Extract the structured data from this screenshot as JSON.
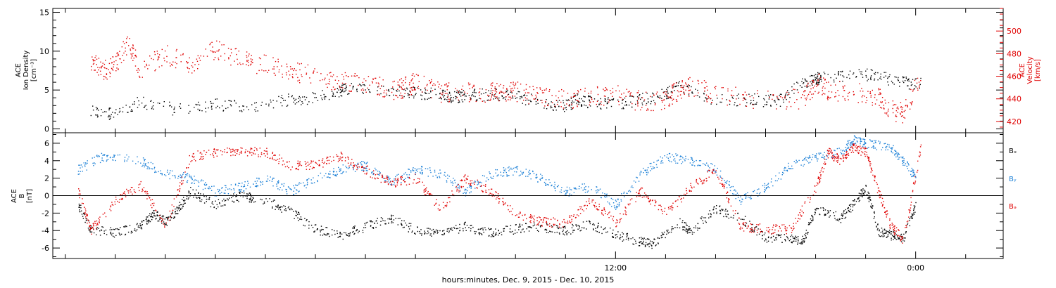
{
  "colors": {
    "black": "#000000",
    "red": "#e00000",
    "blue": "#1a7fd6"
  },
  "chart_data": [
    {
      "type": "scatter",
      "title": "",
      "ylabel_left": [
        "ACE",
        "Ion Density",
        "[cm⁻³]"
      ],
      "ylabel_right": [
        "ACE",
        "Velocity",
        "[km/s]"
      ],
      "ylim_left": [
        -0.5,
        15.5
      ],
      "ylim_right": [
        410,
        520
      ],
      "yticks_left": [
        0,
        5,
        10,
        15
      ],
      "yticks_right": [
        420,
        440,
        460,
        480,
        500
      ],
      "series": [
        {
          "color": "#000000",
          "axis": "left",
          "x": [
            -9.0,
            -8.2,
            -7.0,
            -5.5,
            -4.0,
            -2.5,
            -1.0,
            0.0,
            1.0,
            1.5,
            3.0,
            4.0,
            5.0,
            5.5,
            6.0,
            7.0,
            8.0,
            9.0,
            10.0,
            10.5,
            11.0,
            12.0,
            13.0,
            14.0,
            14.5,
            16.0,
            17.5,
            18.5,
            19.5,
            20.0,
            20.2,
            21.5,
            22.5,
            23.5,
            24.2
          ],
          "y": [
            2.5,
            2.0,
            3.5,
            2.5,
            3.2,
            3.0,
            3.8,
            4.0,
            5.0,
            5.2,
            4.8,
            4.7,
            4.5,
            4.2,
            4.3,
            4.5,
            4.2,
            3.5,
            3.0,
            3.8,
            3.5,
            3.2,
            3.8,
            4.5,
            5.5,
            3.8,
            3.8,
            3.6,
            6.0,
            6.5,
            6.5,
            7.2,
            6.8,
            6.0,
            5.8
          ]
        },
        {
          "color": "#e00000",
          "axis": "right",
          "x": [
            -9.0,
            -8.5,
            -8.0,
            -7.5,
            -7.0,
            -6.0,
            -5.0,
            -4.0,
            -3.0,
            -2.0,
            -1.0,
            0.0,
            1.0,
            2.0,
            3.0,
            3.5,
            4.0,
            5.0,
            6.0,
            7.0,
            7.5,
            8.0,
            9.0,
            10.0,
            11.0,
            12.0,
            13.0,
            14.0,
            14.5,
            15.0,
            16.0,
            17.5,
            19.5,
            20.0,
            20.5,
            21.5,
            22.5,
            23.0,
            23.5,
            24.2
          ],
          "y": [
            475,
            465,
            470,
            490,
            465,
            480,
            470,
            485,
            475,
            470,
            465,
            460,
            455,
            455,
            448,
            450,
            455,
            446,
            447,
            446,
            445,
            447,
            442,
            440,
            442,
            444,
            438,
            440,
            448,
            452,
            444,
            440,
            440,
            455,
            448,
            446,
            442,
            430,
            428,
            460
          ]
        }
      ]
    },
    {
      "type": "scatter",
      "title": "",
      "ylabel": [
        "ACE",
        "B",
        "[nT]"
      ],
      "ylim": [
        -7.2,
        7.2
      ],
      "yticks": [
        -6,
        -4,
        -2,
        0,
        2,
        4,
        6
      ],
      "zero_line": true,
      "legend": [
        "Bₓ",
        "Bᵧ",
        "Bₔ"
      ],
      "legend_position": "right",
      "series": [
        {
          "name": "Bx",
          "color": "#000000",
          "x": [
            -9.5,
            -9.0,
            -8.0,
            -7.0,
            -6.5,
            -6.0,
            -5.5,
            -5.0,
            -4.0,
            -3.0,
            -2.0,
            -1.0,
            0.0,
            1.0,
            2.0,
            3.0,
            4.0,
            5.0,
            6.0,
            7.0,
            8.0,
            9.0,
            10.0,
            11.0,
            12.0,
            13.0,
            13.5,
            14.5,
            15.0,
            16.0,
            17.0,
            18.0,
            19.0,
            19.5,
            20.0,
            21.0,
            21.5,
            22.0,
            22.5,
            23.0,
            23.5,
            24.0
          ],
          "y": [
            -1.0,
            -3.8,
            -4.2,
            -3.5,
            -2.0,
            -3.0,
            -1.5,
            0.5,
            -1.0,
            0.0,
            -0.5,
            -1.8,
            -3.8,
            -4.5,
            -3.5,
            -2.5,
            -4.0,
            -4.2,
            -3.5,
            -4.3,
            -3.8,
            -3.5,
            -4.0,
            -3.2,
            -4.5,
            -5.2,
            -5.5,
            -3.0,
            -4.0,
            -1.5,
            -2.5,
            -4.8,
            -5.0,
            -5.0,
            -1.5,
            -2.5,
            -1.0,
            1.0,
            -4.0,
            -4.5,
            -4.8,
            -1.0
          ]
        },
        {
          "name": "By",
          "color": "#1a7fd6",
          "x": [
            -9.5,
            -8.5,
            -7.0,
            -6.0,
            -5.0,
            -4.0,
            -3.0,
            -2.0,
            -1.0,
            0.0,
            1.0,
            2.0,
            3.0,
            4.0,
            5.0,
            6.0,
            7.0,
            8.0,
            9.0,
            10.0,
            11.0,
            12.0,
            13.0,
            14.0,
            15.0,
            16.0,
            17.0,
            18.0,
            19.0,
            20.0,
            21.0,
            21.5,
            22.0,
            23.0,
            23.5,
            24.0
          ],
          "y": [
            3.0,
            4.5,
            4.0,
            2.5,
            2.0,
            0.5,
            1.0,
            2.0,
            0.5,
            2.0,
            3.0,
            3.5,
            1.5,
            3.0,
            2.5,
            0.5,
            2.5,
            3.0,
            2.0,
            0.5,
            1.0,
            -1.0,
            2.5,
            4.5,
            4.0,
            3.0,
            -0.5,
            1.0,
            3.5,
            4.5,
            5.0,
            6.5,
            6.0,
            5.5,
            4.0,
            2.0
          ]
        },
        {
          "name": "Bz",
          "color": "#e00000",
          "x": [
            -9.5,
            -9.0,
            -8.0,
            -7.0,
            -6.0,
            -5.0,
            -4.0,
            -3.0,
            -2.0,
            -1.0,
            0.0,
            1.0,
            2.0,
            3.0,
            4.0,
            5.0,
            6.0,
            7.0,
            8.0,
            9.0,
            10.0,
            11.0,
            12.0,
            13.0,
            14.0,
            15.0,
            16.0,
            17.0,
            18.0,
            19.0,
            20.0,
            20.5,
            21.0,
            21.5,
            22.0,
            22.5,
            23.0,
            23.5,
            24.2
          ],
          "y": [
            0.8,
            -4.0,
            -0.5,
            1.2,
            -3.5,
            4.5,
            5.0,
            5.2,
            5.0,
            3.5,
            3.5,
            4.5,
            3.0,
            1.5,
            2.0,
            -1.5,
            2.0,
            0.5,
            -2.0,
            -3.0,
            -3.0,
            -0.5,
            -3.0,
            0.5,
            -2.0,
            1.0,
            3.0,
            -3.5,
            -3.8,
            -3.8,
            1.0,
            5.0,
            4.0,
            5.5,
            5.0,
            0.5,
            -3.5,
            -5.0,
            5.5
          ]
        }
      ]
    }
  ],
  "xaxis": {
    "xlim": [
      -10.5,
      27.5
    ],
    "major_ticks": [
      {
        "x": 12,
        "label": "12:00"
      },
      {
        "x": 24,
        "label": "0:00"
      }
    ],
    "minor_step": 2,
    "xlabel": "hours:minutes, Dec.  9, 2015 - Dec. 10, 2015"
  }
}
